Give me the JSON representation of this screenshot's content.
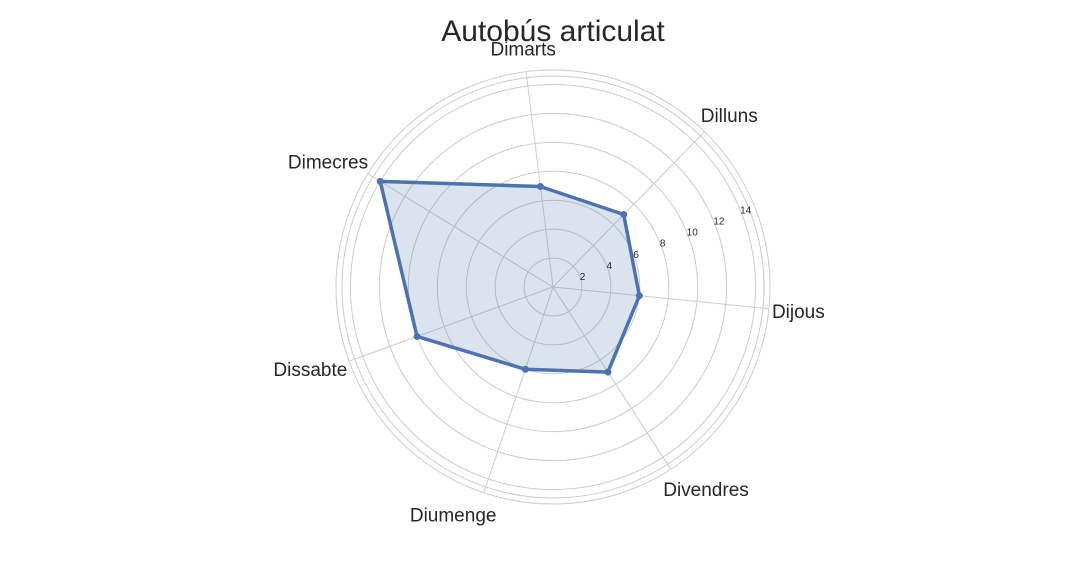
{
  "chart_data": {
    "type": "radar",
    "title": "Autobús articulat",
    "categories": [
      "Dijous",
      "Dilluns",
      "Dimarts",
      "Dimecres",
      "Dissabte",
      "Diumenge",
      "Divendres"
    ],
    "series": [
      {
        "values": [
          6.0,
          7.0,
          7.0,
          14.0,
          10.0,
          6.0,
          7.0
        ]
      }
    ],
    "r_ticks": [
      2,
      4,
      6,
      8,
      10,
      12,
      14
    ],
    "r_tick_labels": [
      "2",
      "4",
      "6",
      "8",
      "10",
      "12",
      "14"
    ],
    "rlim": [
      0,
      15.0
    ],
    "grid": true,
    "legend": false,
    "colors": {
      "line": "#4c72b0",
      "fill": "#4c72b0",
      "grid": "#cccccc",
      "text": "#262626"
    }
  }
}
